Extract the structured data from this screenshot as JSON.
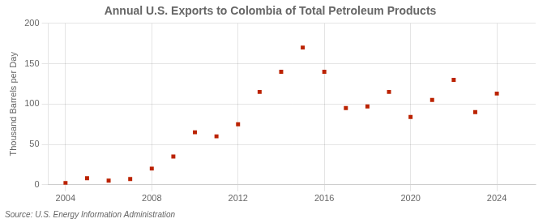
{
  "chart_data": {
    "type": "scatter",
    "title": "Annual U.S. Exports to Colombia of Total Petroleum Products",
    "ylabel": "Thousand Barrels per Day",
    "annotation": "Source: U.S. Energy Information Administration",
    "x": [
      2004,
      2005,
      2006,
      2007,
      2008,
      2009,
      2010,
      2011,
      2012,
      2013,
      2014,
      2015,
      2016,
      2017,
      2018,
      2019,
      2020,
      2021,
      2022,
      2023,
      2024
    ],
    "values": [
      2,
      8,
      5,
      7,
      20,
      35,
      65,
      60,
      75,
      115,
      140,
      170,
      140,
      95,
      97,
      115,
      84,
      105,
      130,
      90,
      113
    ],
    "color": "#bb2200",
    "marker": "square",
    "grid": true,
    "xlim": [
      2003.2,
      2025.8
    ],
    "ylim": [
      0,
      200
    ],
    "xticks": [
      2004,
      2008,
      2012,
      2016,
      2020,
      2024
    ],
    "yticks": [
      0,
      50,
      100,
      150,
      200
    ]
  }
}
